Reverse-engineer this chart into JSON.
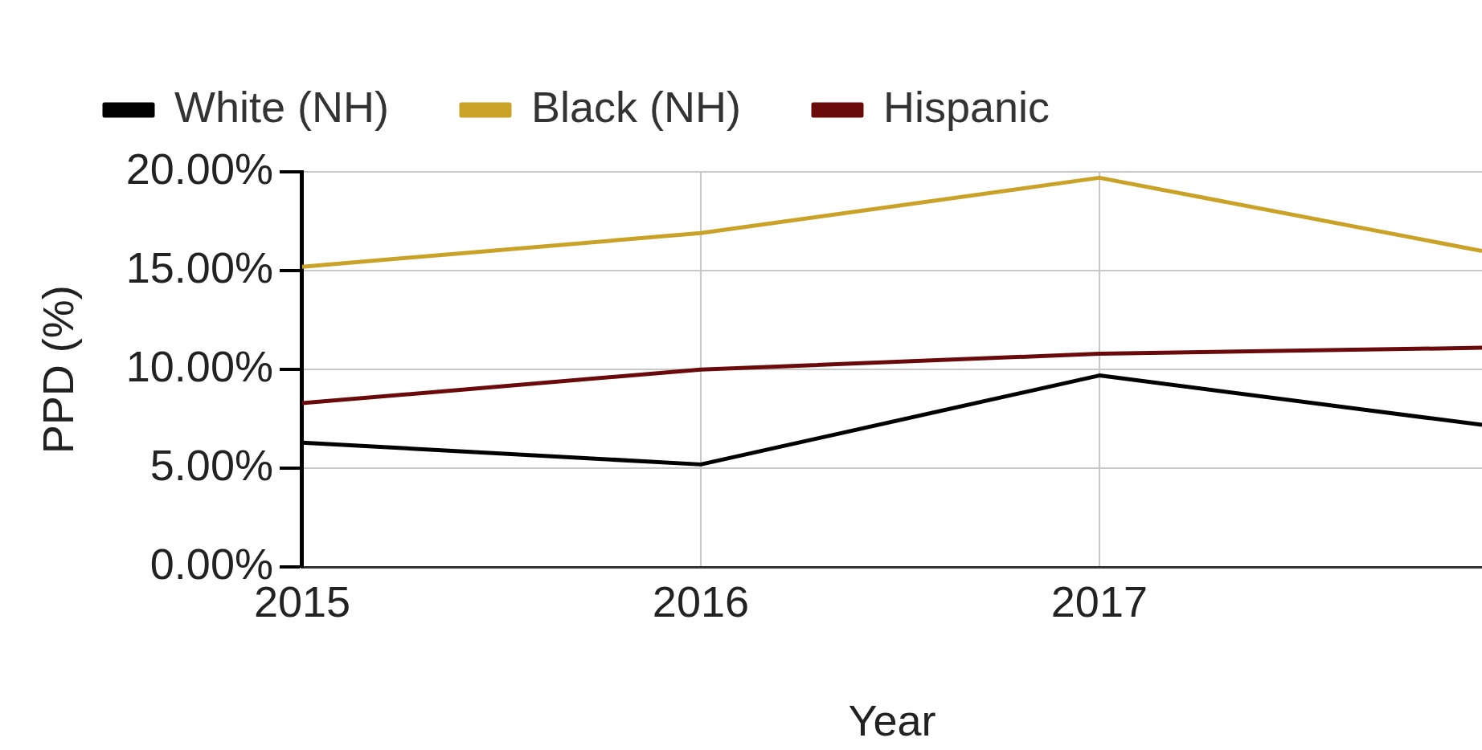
{
  "chart_data": {
    "type": "line",
    "xlabel": "Year",
    "ylabel": "PPD (%)",
    "legend": "top left",
    "grid": true,
    "marker": "none",
    "line_style": "solid",
    "xlim": [
      2015,
      2017.96
    ],
    "xticks": [
      2015,
      2016,
      2017
    ],
    "ylim": [
      0,
      20
    ],
    "yticks": [
      {
        "value": 0,
        "label": "0.00%"
      },
      {
        "value": 5,
        "label": "5.00%"
      },
      {
        "value": 10,
        "label": "10.00%"
      },
      {
        "value": 15,
        "label": "15.00%"
      },
      {
        "value": 20,
        "label": "20.00%"
      }
    ],
    "x": [
      2015,
      2016,
      2017,
      2017.96
    ],
    "series": [
      {
        "name": "White (NH)",
        "color": "#000000",
        "values": [
          6.3,
          5.2,
          9.7,
          7.2
        ]
      },
      {
        "name": "Black (NH)",
        "color": "#c9a227",
        "values": [
          15.2,
          16.9,
          19.7,
          16.0
        ]
      },
      {
        "name": "Hispanic",
        "color": "#6b0a0a",
        "values": [
          8.3,
          10.0,
          10.8,
          11.1
        ]
      }
    ]
  }
}
